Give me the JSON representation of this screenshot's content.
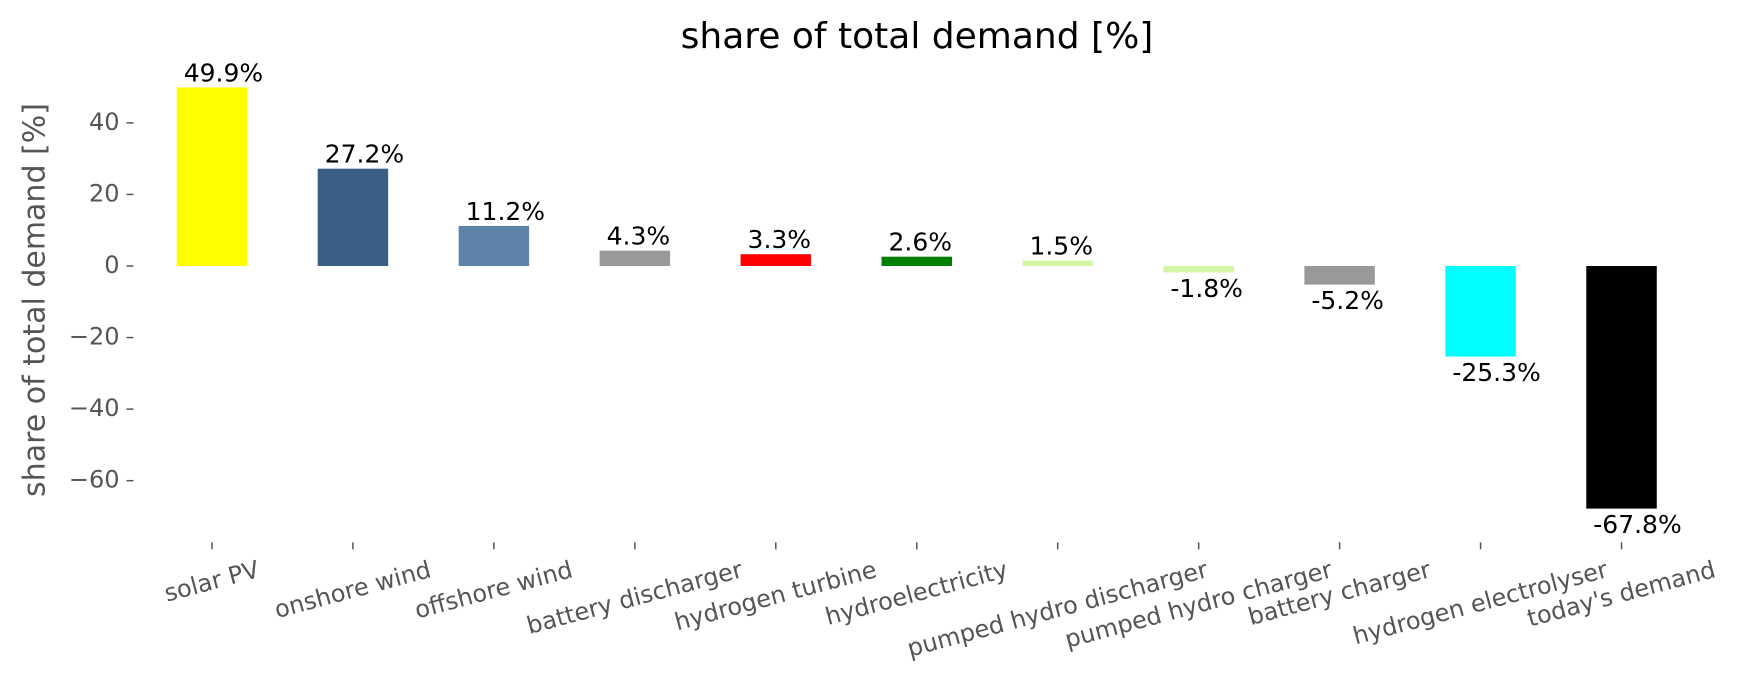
{
  "chart_data": {
    "type": "bar",
    "title": "share of total demand [%]",
    "ylabel": "share of total demand [%]",
    "categories": [
      "solar PV",
      "onshore wind",
      "offshore wind",
      "battery discharger",
      "hydrogen turbine",
      "hydroelectricity",
      "pumped hydro discharger",
      "pumped hydro charger",
      "battery charger",
      "hydrogen electrolyser",
      "today's demand"
    ],
    "values": [
      49.9,
      27.2,
      11.2,
      4.3,
      3.3,
      2.6,
      1.5,
      -1.8,
      -5.2,
      -25.3,
      -67.8
    ],
    "value_labels": [
      "49.9%",
      "27.2%",
      "11.2%",
      "4.3%",
      "3.3%",
      "2.6%",
      "1.5%",
      "-1.8%",
      "-5.2%",
      "-25.3%",
      "-67.8%"
    ],
    "colors": [
      "#ffff00",
      "#3a5f85",
      "#5d84a8",
      "#999999",
      "#ff0000",
      "#008000",
      "#d4f5a6",
      "#d4f5a6",
      "#999999",
      "#00ffff",
      "#000000"
    ],
    "ylim": [
      -75,
      55
    ],
    "yticks": [
      {
        "value": -60,
        "label": "−60"
      },
      {
        "value": -40,
        "label": "−40"
      },
      {
        "value": -20,
        "label": "−20"
      },
      0,
      20,
      40
    ],
    "grid": false
  }
}
